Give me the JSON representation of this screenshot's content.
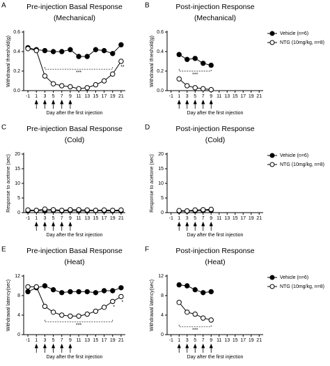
{
  "chart_data": [
    {
      "type": "line",
      "panel": "A",
      "title": "Pre-injection Basal Response",
      "subtitle": "(Mechanical)",
      "x_label": "Day after the first injection",
      "y_label": "Withdrawal threshold(g)",
      "xlim": [
        -2,
        22
      ],
      "xticks": [
        -1,
        1,
        3,
        5,
        7,
        9,
        11,
        13,
        15,
        17,
        19,
        21
      ],
      "ylim": [
        0,
        0.6
      ],
      "yticks": [
        {
          "value": 0,
          "label": "0.0"
        },
        0.2,
        0.4,
        0.6
      ],
      "x": [
        -1,
        1,
        3,
        5,
        7,
        9,
        11,
        13,
        15,
        17,
        19,
        21
      ],
      "series": [
        {
          "color": "#000000",
          "marker_fill": "#000000",
          "values": [
            0.44,
            0.42,
            0.41,
            0.4,
            0.4,
            0.42,
            0.35,
            0.35,
            0.42,
            0.41,
            0.38,
            0.47
          ]
        },
        {
          "color": "#000000",
          "marker_fill": "#ffffff",
          "values": [
            0.43,
            0.41,
            0.15,
            0.07,
            0.05,
            0.04,
            0.02,
            0.03,
            0.06,
            0.1,
            0.17,
            0.3
          ]
        }
      ],
      "arrows": [
        1,
        3,
        5,
        7,
        9
      ],
      "brackets": [
        {
          "text": "***",
          "x": [
            3,
            19
          ],
          "y": 0.22
        }
      ],
      "stars": [
        {
          "text": "**",
          "x": 21,
          "y": 0.24
        }
      ]
    },
    {
      "type": "line",
      "panel": "B",
      "title": "Post-injection Response",
      "subtitle": "(Mechanical)",
      "x_label": "Day after the first injection",
      "y_label": "Withdrawal threshold(g)",
      "xlim": [
        -2,
        22
      ],
      "xticks": [
        -1,
        1,
        3,
        5,
        7,
        9,
        11,
        13,
        15,
        17,
        19,
        21
      ],
      "ylim": [
        0,
        0.6
      ],
      "yticks": [
        {
          "value": 0,
          "label": "0.0"
        },
        0.2,
        0.4,
        0.6
      ],
      "x": [
        1,
        3,
        5,
        7,
        9
      ],
      "legend": "right",
      "series": [
        {
          "name": "Vehicle (n=6)",
          "color": "#000000",
          "marker_fill": "#000000",
          "values": [
            0.37,
            0.32,
            0.33,
            0.28,
            0.26
          ]
        },
        {
          "name": "NTG (10mg/kg, n=8)",
          "color": "#000000",
          "marker_fill": "#ffffff",
          "values": [
            0.12,
            0.05,
            0.03,
            0.02,
            0.01
          ]
        }
      ],
      "arrows": [
        1,
        3,
        5,
        7,
        9
      ],
      "brackets": [
        {
          "text": "***",
          "x": [
            1,
            9
          ],
          "y": 0.2
        }
      ],
      "stars": []
    },
    {
      "type": "line",
      "panel": "C",
      "title": "Pre-injection Basal Response",
      "subtitle": "(Cold)",
      "x_label": "Day after the first injection",
      "y_label": "Response to acetone (sec)",
      "xlim": [
        -2,
        22
      ],
      "xticks": [
        -1,
        1,
        3,
        5,
        7,
        9,
        11,
        13,
        15,
        17,
        19,
        21
      ],
      "ylim": [
        0,
        20
      ],
      "yticks": [
        0,
        5,
        10,
        15,
        20
      ],
      "x": [
        -1,
        1,
        3,
        5,
        7,
        9,
        11,
        13,
        15,
        17,
        19,
        21
      ],
      "series": [
        {
          "color": "#000000",
          "marker_fill": "#000000",
          "values": [
            0.6,
            0.7,
            0.6,
            0.7,
            0.6,
            0.7,
            0.6,
            0.6,
            0.7,
            0.6,
            0.6,
            0.6
          ]
        },
        {
          "color": "#000000",
          "marker_fill": "#ffffff",
          "values": [
            0.9,
            0.8,
            1.2,
            1.0,
            0.8,
            1.0,
            1.0,
            0.9,
            0.8,
            0.9,
            0.8,
            0.9
          ]
        }
      ],
      "arrows": [
        1,
        3,
        5,
        7,
        9
      ],
      "brackets": [],
      "stars": []
    },
    {
      "type": "line",
      "panel": "D",
      "title": "Post-injection Response",
      "subtitle": "(Cold)",
      "x_label": "Day after the first injection",
      "y_label": "Response to acetone (sec)",
      "xlim": [
        -2,
        22
      ],
      "xticks": [
        -1,
        1,
        3,
        5,
        7,
        9,
        11,
        13,
        15,
        17,
        19,
        21
      ],
      "ylim": [
        0,
        20
      ],
      "yticks": [
        0,
        5,
        10,
        15,
        20
      ],
      "x": [
        1,
        3,
        5,
        7,
        9
      ],
      "legend": "right",
      "series": [
        {
          "name": "Vehicle (n=6)",
          "color": "#000000",
          "marker_fill": "#000000",
          "values": [
            0.5,
            0.5,
            0.6,
            0.7,
            0.8
          ]
        },
        {
          "name": "NTG (10mg/kg, n=8)",
          "color": "#000000",
          "marker_fill": "#ffffff",
          "values": [
            0.7,
            0.6,
            0.9,
            1.0,
            1.1
          ]
        }
      ],
      "arrows": [
        1,
        3,
        5,
        7,
        9
      ],
      "brackets": [],
      "stars": []
    },
    {
      "type": "line",
      "panel": "E",
      "title": "Pre-injection Basal Response",
      "subtitle": "(Heat)",
      "x_label": "Day after the first injection",
      "y_label": "Withdrawal latency(sec)",
      "xlim": [
        -2,
        22
      ],
      "xticks": [
        -1,
        1,
        3,
        5,
        7,
        9,
        11,
        13,
        15,
        17,
        19,
        21
      ],
      "ylim": [
        0,
        12
      ],
      "yticks": [
        0,
        4,
        8,
        12
      ],
      "x": [
        -1,
        1,
        3,
        5,
        7,
        9,
        11,
        13,
        15,
        17,
        19,
        21
      ],
      "series": [
        {
          "color": "#000000",
          "marker_fill": "#000000",
          "values": [
            8.8,
            9.6,
            10.0,
            9.2,
            8.6,
            8.8,
            8.8,
            8.8,
            8.6,
            9.0,
            9.0,
            9.6
          ]
        },
        {
          "color": "#000000",
          "marker_fill": "#ffffff",
          "values": [
            9.8,
            9.8,
            5.8,
            4.6,
            4.0,
            3.8,
            3.8,
            4.2,
            4.8,
            5.6,
            6.8,
            7.8
          ]
        }
      ],
      "arrows": [
        1,
        3,
        5,
        7,
        9
      ],
      "brackets": [
        {
          "text": "***",
          "x": [
            3,
            19
          ],
          "y": 2.6
        }
      ],
      "stars": [
        {
          "text": "*",
          "x": 19,
          "y": 5.6
        },
        {
          "text": "*",
          "x": 21,
          "y": 6.6
        }
      ]
    },
    {
      "type": "line",
      "panel": "F",
      "title": "Post-injection Response",
      "subtitle": "(Heat)",
      "x_label": "Day after the first injection",
      "y_label": "Withdrawal latency(sec)",
      "xlim": [
        -2,
        22
      ],
      "xticks": [
        -1,
        1,
        3,
        5,
        7,
        9,
        11,
        13,
        15,
        17,
        19,
        21
      ],
      "ylim": [
        0,
        12
      ],
      "yticks": [
        0,
        4,
        8,
        12
      ],
      "x": [
        1,
        3,
        5,
        7,
        9
      ],
      "legend": "right",
      "series": [
        {
          "name": "Vehicle (n=6)",
          "color": "#000000",
          "marker_fill": "#000000",
          "values": [
            10.2,
            10.0,
            9.2,
            8.6,
            8.8
          ]
        },
        {
          "name": "NTG (10mg/kg, n=8)",
          "color": "#000000",
          "marker_fill": "#ffffff",
          "values": [
            6.6,
            4.6,
            4.2,
            3.4,
            3.0
          ]
        }
      ],
      "arrows": [
        1,
        3,
        5,
        7,
        9
      ],
      "brackets": [
        {
          "text": "***",
          "x": [
            1,
            9
          ],
          "y": 1.6
        }
      ],
      "stars": []
    }
  ]
}
